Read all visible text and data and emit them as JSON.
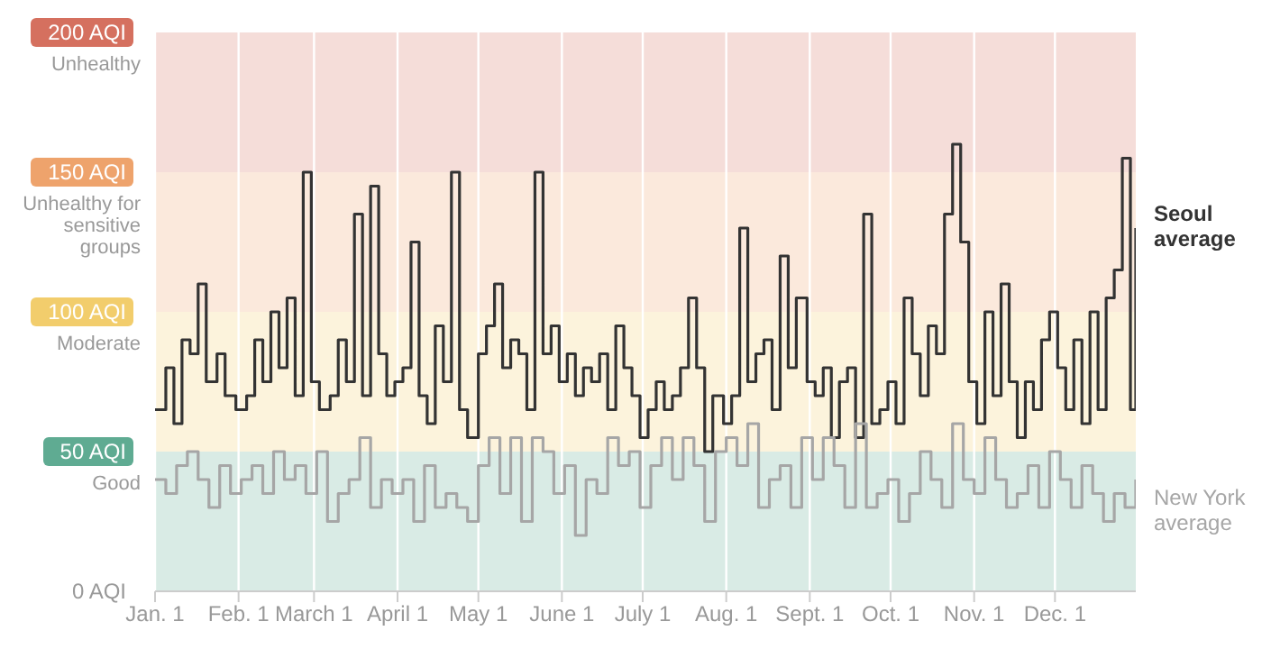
{
  "chart_data": {
    "type": "step",
    "xlim": [
      "--01-01",
      "--12-31"
    ],
    "xticks": [
      {
        "value": "--01-01",
        "label": "Jan. 1"
      },
      {
        "value": "--02-01",
        "label": "Feb. 1"
      },
      {
        "value": "--03-01",
        "label": "March 1"
      },
      {
        "value": "--04-01",
        "label": "April 1"
      },
      {
        "value": "--05-01",
        "label": "May 1"
      },
      {
        "value": "--06-01",
        "label": "June 1"
      },
      {
        "value": "--07-01",
        "label": "July 1"
      },
      {
        "value": "--08-01",
        "label": "Aug. 1"
      },
      {
        "value": "--09-01",
        "label": "Sept. 1"
      },
      {
        "value": "--10-01",
        "label": "Oct. 1"
      },
      {
        "value": "--11-01",
        "label": "Nov. 1"
      },
      {
        "value": "--12-01",
        "label": "Dec. 1"
      }
    ],
    "ylim": [
      0,
      200
    ],
    "yticks": [
      {
        "value": 0,
        "label": "0 AQI"
      },
      {
        "value": 50,
        "label": "50 AQI"
      },
      {
        "value": 100,
        "label": "100 AQI"
      },
      {
        "value": 150,
        "label": "150 AQI"
      },
      {
        "value": 200,
        "label": "200 AQI"
      }
    ],
    "grid": "x",
    "bands": [
      {
        "axis": "y",
        "from": 0,
        "to": 50,
        "label": "Good",
        "color": "#d9ebe5"
      },
      {
        "axis": "y",
        "from": 50,
        "to": 100,
        "label": "Moderate",
        "color": "#fcf3dc"
      },
      {
        "axis": "y",
        "from": 100,
        "to": 150,
        "label": "Unhealthy for sensitive groups",
        "color": "#fbe9dc"
      },
      {
        "axis": "y",
        "from": 150,
        "to": 200,
        "label": "Unhealthy",
        "color": "#f5ddd9"
      }
    ],
    "series": [
      {
        "name": "Seoul average",
        "color": "#333333",
        "x": [
          "--01-01",
          "--01-05",
          "--01-08",
          "--01-11",
          "--01-14",
          "--01-17",
          "--01-20",
          "--01-24",
          "--01-27",
          "--01-31",
          "--02-04",
          "--02-07",
          "--02-10",
          "--02-13",
          "--02-16",
          "--02-19",
          "--02-22",
          "--02-25",
          "--02-28",
          "--03-03",
          "--03-07",
          "--03-10",
          "--03-13",
          "--03-16",
          "--03-19",
          "--03-22",
          "--03-25",
          "--03-28",
          "--03-31",
          "--04-03",
          "--04-06",
          "--04-09",
          "--04-12",
          "--04-15",
          "--04-18",
          "--04-21",
          "--04-24",
          "--04-27",
          "--05-01",
          "--05-04",
          "--05-07",
          "--05-10",
          "--05-13",
          "--05-16",
          "--05-19",
          "--05-22",
          "--05-25",
          "--05-28",
          "--05-31",
          "--06-03",
          "--06-06",
          "--06-09",
          "--06-12",
          "--06-15",
          "--06-18",
          "--06-21",
          "--06-24",
          "--06-27",
          "--06-30",
          "--07-03",
          "--07-06",
          "--07-09",
          "--07-12",
          "--07-15",
          "--07-18",
          "--07-21",
          "--07-24",
          "--07-27",
          "--07-31",
          "--08-03",
          "--08-06",
          "--08-09",
          "--08-12",
          "--08-15",
          "--08-18",
          "--08-21",
          "--08-24",
          "--08-27",
          "--08-31",
          "--09-03",
          "--09-06",
          "--09-09",
          "--09-12",
          "--09-15",
          "--09-18",
          "--09-21",
          "--09-24",
          "--09-27",
          "--09-30",
          "--10-03",
          "--10-06",
          "--10-09",
          "--10-12",
          "--10-15",
          "--10-18",
          "--10-21",
          "--10-24",
          "--10-27",
          "--10-30",
          "--11-02",
          "--11-05",
          "--11-08",
          "--11-11",
          "--11-14",
          "--11-17",
          "--11-20",
          "--11-23",
          "--11-26",
          "--11-29",
          "--12-02",
          "--12-05",
          "--12-08",
          "--12-11",
          "--12-14",
          "--12-17",
          "--12-20",
          "--12-23",
          "--12-26",
          "--12-29",
          "--12-31"
        ],
        "values": [
          65,
          80,
          60,
          90,
          85,
          110,
          75,
          85,
          70,
          65,
          70,
          90,
          75,
          100,
          80,
          105,
          70,
          150,
          75,
          65,
          70,
          90,
          75,
          135,
          70,
          145,
          85,
          70,
          75,
          80,
          125,
          70,
          60,
          95,
          75,
          150,
          65,
          55,
          85,
          95,
          110,
          80,
          90,
          85,
          65,
          150,
          85,
          95,
          75,
          85,
          70,
          80,
          75,
          85,
          65,
          95,
          80,
          70,
          55,
          65,
          75,
          65,
          70,
          80,
          105,
          80,
          50,
          70,
          60,
          70,
          130,
          75,
          85,
          90,
          65,
          120,
          80,
          105,
          75,
          70,
          80,
          55,
          75,
          80,
          55,
          135,
          60,
          65,
          75,
          60,
          105,
          85,
          70,
          95,
          85,
          135,
          160,
          125,
          75,
          60,
          100,
          70,
          110,
          75,
          55,
          75,
          65,
          90,
          100,
          80,
          65,
          90,
          60,
          100,
          65,
          105,
          115,
          155,
          65,
          130
        ]
      },
      {
        "name": "New York average",
        "color": "#a6a6a6",
        "x": [
          "--01-01",
          "--01-05",
          "--01-09",
          "--01-13",
          "--01-17",
          "--01-21",
          "--01-25",
          "--01-29",
          "--02-02",
          "--02-06",
          "--02-10",
          "--02-14",
          "--02-18",
          "--02-22",
          "--02-26",
          "--03-02",
          "--03-06",
          "--03-10",
          "--03-14",
          "--03-18",
          "--03-22",
          "--03-26",
          "--03-30",
          "--04-03",
          "--04-07",
          "--04-11",
          "--04-15",
          "--04-19",
          "--04-23",
          "--04-27",
          "--05-01",
          "--05-05",
          "--05-09",
          "--05-13",
          "--05-17",
          "--05-21",
          "--05-25",
          "--05-29",
          "--06-02",
          "--06-06",
          "--06-10",
          "--06-14",
          "--06-18",
          "--06-22",
          "--06-26",
          "--06-30",
          "--07-04",
          "--07-08",
          "--07-12",
          "--07-16",
          "--07-20",
          "--07-24",
          "--07-28",
          "--08-01",
          "--08-05",
          "--08-09",
          "--08-13",
          "--08-17",
          "--08-21",
          "--08-25",
          "--08-29",
          "--09-02",
          "--09-06",
          "--09-10",
          "--09-14",
          "--09-18",
          "--09-22",
          "--09-26",
          "--09-30",
          "--10-04",
          "--10-08",
          "--10-12",
          "--10-16",
          "--10-20",
          "--10-24",
          "--10-28",
          "--11-01",
          "--11-05",
          "--11-09",
          "--11-13",
          "--11-17",
          "--11-21",
          "--11-25",
          "--11-29",
          "--12-03",
          "--12-07",
          "--12-11",
          "--12-15",
          "--12-19",
          "--12-23",
          "--12-27",
          "--12-31"
        ],
        "values": [
          40,
          35,
          45,
          50,
          40,
          30,
          45,
          35,
          40,
          45,
          35,
          50,
          40,
          45,
          35,
          50,
          25,
          35,
          40,
          55,
          30,
          40,
          35,
          40,
          25,
          45,
          30,
          35,
          30,
          25,
          45,
          55,
          35,
          55,
          25,
          55,
          50,
          35,
          45,
          20,
          40,
          35,
          55,
          45,
          50,
          30,
          45,
          55,
          40,
          55,
          45,
          25,
          50,
          55,
          45,
          60,
          30,
          40,
          45,
          30,
          55,
          40,
          55,
          45,
          30,
          60,
          30,
          35,
          40,
          25,
          35,
          50,
          40,
          30,
          60,
          40,
          35,
          55,
          40,
          30,
          35,
          45,
          30,
          50,
          40,
          30,
          45,
          35,
          25,
          35,
          30,
          40
        ]
      }
    ]
  }
}
